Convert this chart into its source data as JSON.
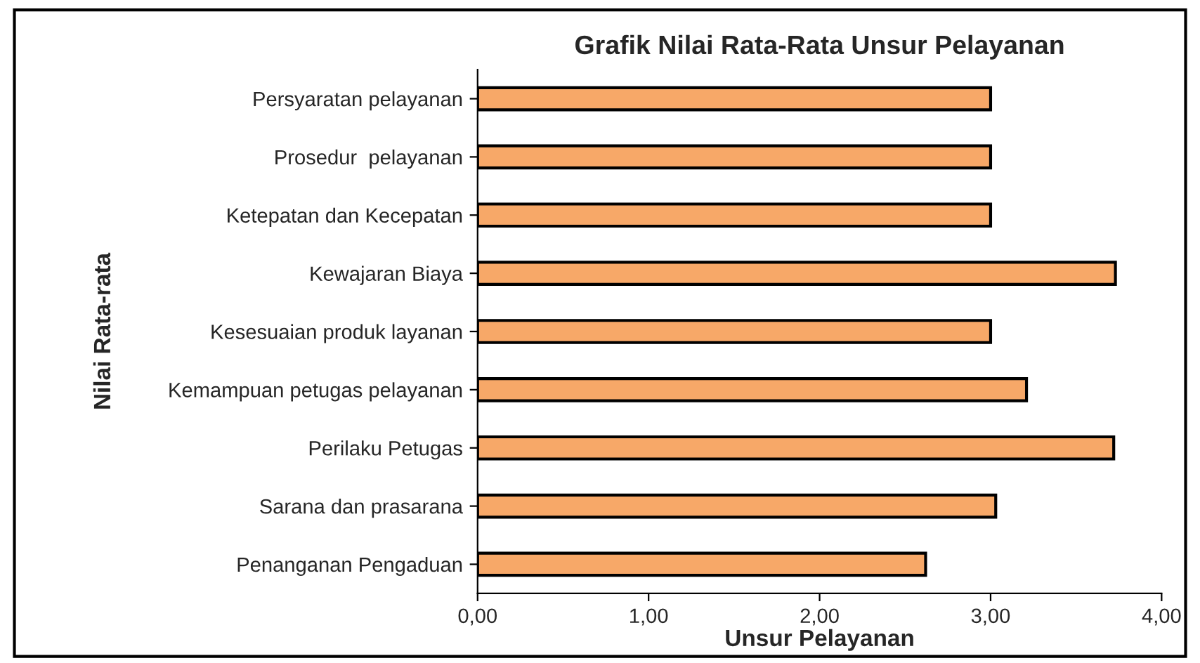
{
  "chart_data": {
    "type": "bar",
    "orientation": "horizontal",
    "title": "Grafik Nilai Rata-Rata Unsur Pelayanan",
    "xlabel": "Unsur Pelayanan",
    "ylabel": "Nilai Rata-rata",
    "categories": [
      "Persyaratan pelayanan",
      "Prosedur  pelayanan",
      "Ketepatan dan Kecepatan",
      "Kewajaran Biaya",
      "Kesesuaian produk layanan",
      "Kemampuan petugas pelayanan",
      "Perilaku Petugas",
      "Sarana dan prasarana",
      "Penanganan Pengaduan"
    ],
    "values": [
      3.0,
      3.0,
      3.0,
      3.73,
      3.0,
      3.21,
      3.72,
      3.03,
      2.62
    ],
    "color": "#f7a868",
    "xlim": [
      0,
      4
    ],
    "xticks": [
      {
        "value": 0,
        "label": "0,00"
      },
      {
        "value": 1,
        "label": "1,00"
      },
      {
        "value": 2,
        "label": "2,00"
      },
      {
        "value": 3,
        "label": "3,00"
      },
      {
        "value": 4,
        "label": "4,00"
      }
    ],
    "grid": false,
    "legend": false
  }
}
